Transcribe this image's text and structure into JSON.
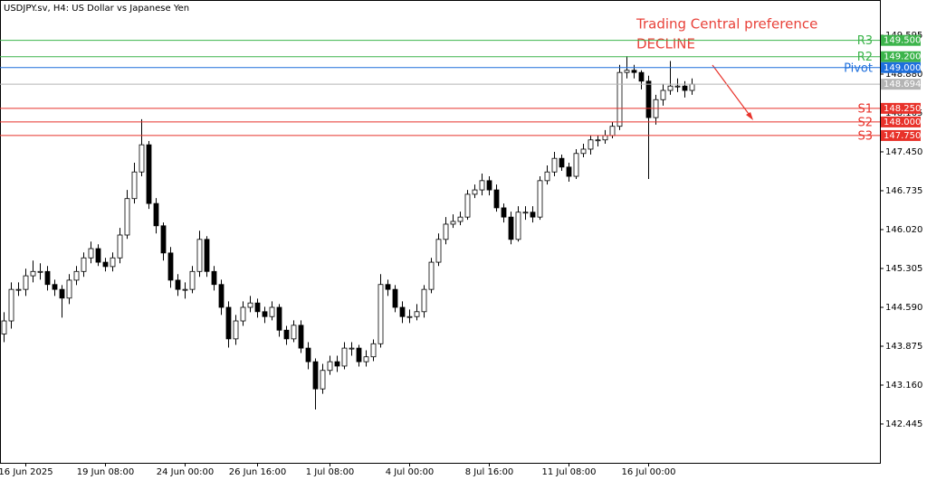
{
  "chart_data": {
    "type": "candlestick",
    "title": "USDJPY.sv, H4:  US Dollar vs Japanese Yen",
    "annotations": [
      "Trading Central preference",
      "DECLINE"
    ],
    "categories": [
      null,
      null,
      null,
      "16 Jun 2025",
      null,
      null,
      null,
      null,
      null,
      null,
      null,
      null,
      null,
      null,
      "19 Jun 08:00",
      null,
      null,
      null,
      null,
      null,
      null,
      null,
      null,
      null,
      null,
      "24 Jun 00:00",
      null,
      null,
      null,
      null,
      null,
      null,
      null,
      null,
      null,
      "26 Jun 16:00",
      null,
      null,
      null,
      null,
      null,
      null,
      null,
      null,
      null,
      "1 Jul 08:00",
      null,
      null,
      null,
      null,
      null,
      null,
      null,
      null,
      null,
      null,
      "4 Jul 00:00",
      null,
      null,
      null,
      null,
      null,
      null,
      null,
      null,
      null,
      null,
      "8 Jul 16:00",
      null,
      null,
      null,
      null,
      null,
      null,
      null,
      null,
      null,
      null,
      "11 Jul 08:00",
      null,
      null,
      null,
      null,
      null,
      null,
      null,
      null,
      null,
      null,
      "16 Jul 00:00",
      null,
      null,
      null,
      null,
      null,
      null
    ],
    "open": [
      144.1,
      144.34,
      144.92,
      144.92,
      145.17,
      145.25,
      145.25,
      145.01,
      144.92,
      144.76,
      145.09,
      145.25,
      145.5,
      145.67,
      145.42,
      145.34,
      145.5,
      145.92,
      146.59,
      147.08,
      147.58,
      146.5,
      146.09,
      145.59,
      145.09,
      144.92,
      144.92,
      145.25,
      145.84,
      145.25,
      145.01,
      144.59,
      144.01,
      144.34,
      144.59,
      144.67,
      144.51,
      144.42,
      144.59,
      144.17,
      144.01,
      144.26,
      143.84,
      143.59,
      143.09,
      143.43,
      143.59,
      143.51,
      143.84,
      143.84,
      143.59,
      143.68,
      143.92,
      145.01,
      144.92,
      144.59,
      144.42,
      144.42,
      144.51,
      144.92,
      145.42,
      145.84,
      146.12,
      146.17,
      146.25,
      146.67,
      146.75,
      146.92,
      146.75,
      146.42,
      146.25,
      145.84,
      146.34,
      146.34,
      146.25,
      146.92,
      147.08,
      147.33,
      147.17,
      147.0,
      147.42,
      147.5,
      147.67,
      147.67,
      147.75,
      147.92,
      148.91,
      148.95,
      148.91,
      148.75,
      148.08,
      148.41,
      148.58,
      148.66,
      148.66,
      148.58
    ],
    "high": [
      144.5,
      145.05,
      145.05,
      145.3,
      145.45,
      145.4,
      145.35,
      145.1,
      145.0,
      145.2,
      145.35,
      145.6,
      145.8,
      145.75,
      145.5,
      145.6,
      146.05,
      146.75,
      147.25,
      148.05,
      147.65,
      146.6,
      146.15,
      145.7,
      145.2,
      145.05,
      145.35,
      146.0,
      145.9,
      145.35,
      145.1,
      144.7,
      144.45,
      144.7,
      144.8,
      144.75,
      144.6,
      144.7,
      144.65,
      144.25,
      144.35,
      144.35,
      143.95,
      143.65,
      143.55,
      143.7,
      143.7,
      143.95,
      143.95,
      143.9,
      143.8,
      144.0,
      145.2,
      145.1,
      145.0,
      144.7,
      144.55,
      144.65,
      145.0,
      145.5,
      145.95,
      146.25,
      146.3,
      146.35,
      146.75,
      146.85,
      147.05,
      147.0,
      146.85,
      146.5,
      146.35,
      146.45,
      146.45,
      146.45,
      147.0,
      147.2,
      147.45,
      147.4,
      147.25,
      147.5,
      147.6,
      147.75,
      147.75,
      147.85,
      148.0,
      149.05,
      149.21,
      149.05,
      148.95,
      148.85,
      148.5,
      148.7,
      149.12,
      148.8,
      148.75,
      148.8
    ],
    "low": [
      143.95,
      144.2,
      144.8,
      144.8,
      145.05,
      145.1,
      144.9,
      144.8,
      144.4,
      144.65,
      145.0,
      145.15,
      145.4,
      145.35,
      145.25,
      145.25,
      145.4,
      145.85,
      146.5,
      147.0,
      146.4,
      145.95,
      145.45,
      144.95,
      144.8,
      144.75,
      144.85,
      145.15,
      145.15,
      144.9,
      144.45,
      143.85,
      143.9,
      144.25,
      144.5,
      144.4,
      144.3,
      144.35,
      144.05,
      143.9,
      143.95,
      143.75,
      143.45,
      142.71,
      143.0,
      143.35,
      143.4,
      143.45,
      143.7,
      143.5,
      143.5,
      143.6,
      143.85,
      144.8,
      144.5,
      144.3,
      144.3,
      144.35,
      144.4,
      144.85,
      145.35,
      145.75,
      146.05,
      146.1,
      146.2,
      146.6,
      146.65,
      146.65,
      146.35,
      146.15,
      145.75,
      145.8,
      146.2,
      146.15,
      146.2,
      146.85,
      147.0,
      147.1,
      146.9,
      146.95,
      147.35,
      147.4,
      147.55,
      147.6,
      147.7,
      147.85,
      148.8,
      148.8,
      148.6,
      146.95,
      147.95,
      148.3,
      148.5,
      148.55,
      148.45,
      148.5
    ],
    "close": [
      144.34,
      144.92,
      144.92,
      145.17,
      145.25,
      145.25,
      145.01,
      144.92,
      144.76,
      145.09,
      145.25,
      145.5,
      145.67,
      145.42,
      145.34,
      145.5,
      145.92,
      146.59,
      147.08,
      147.58,
      146.5,
      146.09,
      145.59,
      145.09,
      144.92,
      144.92,
      145.25,
      145.84,
      145.25,
      145.01,
      144.59,
      144.01,
      144.34,
      144.59,
      144.67,
      144.51,
      144.42,
      144.59,
      144.17,
      144.01,
      144.26,
      143.84,
      143.59,
      143.09,
      143.43,
      143.59,
      143.51,
      143.84,
      143.84,
      143.59,
      143.68,
      143.92,
      145.01,
      144.92,
      144.59,
      144.42,
      144.42,
      144.51,
      144.92,
      145.42,
      145.84,
      146.12,
      146.17,
      146.25,
      146.67,
      146.75,
      146.92,
      146.75,
      146.42,
      146.25,
      145.84,
      146.34,
      146.34,
      146.25,
      146.92,
      147.08,
      147.33,
      147.17,
      147.0,
      147.42,
      147.5,
      147.67,
      147.67,
      147.75,
      147.92,
      148.91,
      148.95,
      148.91,
      148.75,
      148.08,
      148.41,
      148.58,
      148.66,
      148.66,
      148.58,
      148.694
    ],
    "up_color": "#ffffff",
    "down_color": "#000000",
    "ylim": [
      141.73,
      150.243
    ],
    "yticks": [
      142.445,
      {
        "value": 143.16,
        "label": "143.160"
      },
      143.875,
      {
        "value": 144.59,
        "label": "144.590"
      },
      145.305,
      {
        "value": 146.02,
        "label": "146.020"
      },
      146.735,
      {
        "value": 147.45,
        "label": "147.450"
      },
      148.165,
      {
        "value": 148.88,
        "label": "148.880"
      },
      149.595
    ],
    "levels": [
      {
        "name": "R3",
        "value": 149.5,
        "value_label": "149.500",
        "color": "#3cb44b"
      },
      {
        "name": "R2",
        "value": 149.2,
        "value_label": "149.200",
        "color": "#3cb44b"
      },
      {
        "name": "Pivot",
        "value": 149.0,
        "value_label": "149.000",
        "color": "#1e6fdc"
      },
      {
        "name": "S1",
        "value": 148.25,
        "value_label": "148.250",
        "color": "#e8322a"
      },
      {
        "name": "S2",
        "value": 148.0,
        "value_label": "148.000",
        "color": "#e8322a"
      },
      {
        "name": "S3",
        "value": 147.75,
        "value_label": "147.750",
        "color": "#e8322a"
      }
    ],
    "current_price": {
      "value": 148.694,
      "color": "#b4b4b4"
    },
    "annotation_color": "#e8423a"
  }
}
